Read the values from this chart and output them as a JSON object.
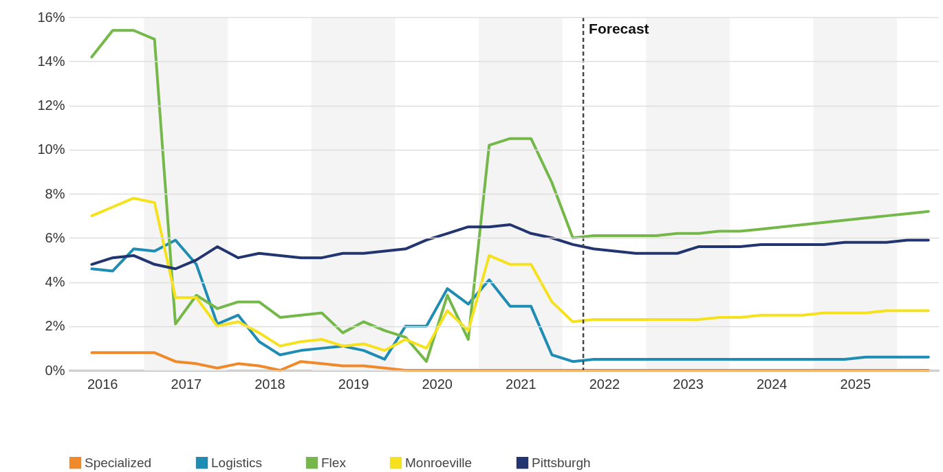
{
  "chart_data": {
    "type": "line",
    "x": [
      2016.375,
      2016.625,
      2016.875,
      2017.125,
      2017.375,
      2017.625,
      2017.875,
      2018.125,
      2018.375,
      2018.625,
      2018.875,
      2019.125,
      2019.375,
      2019.625,
      2019.875,
      2020.125,
      2020.375,
      2020.625,
      2020.875,
      2021.125,
      2021.375,
      2021.625,
      2021.875,
      2022.125,
      2022.375,
      2022.625,
      2022.875,
      2023.125,
      2023.375,
      2023.625,
      2023.875,
      2024.125,
      2024.375,
      2024.625,
      2024.875,
      2025.125,
      2025.375,
      2025.625,
      2025.875,
      2026.125,
      2026.375
    ],
    "series": [
      {
        "name": "Specialized",
        "color": "#f0892a",
        "values": [
          0.8,
          0.8,
          0.8,
          0.8,
          0.4,
          0.3,
          0.1,
          0.3,
          0.2,
          0.0,
          0.4,
          0.3,
          0.2,
          0.2,
          0.1,
          0.0,
          0,
          0,
          0,
          0,
          0,
          0,
          0,
          0,
          0,
          0,
          0,
          0,
          0,
          0,
          0,
          0,
          0,
          0,
          0,
          0,
          0,
          0,
          0,
          0,
          0
        ]
      },
      {
        "name": "Logistics",
        "color": "#1f8db3",
        "values": [
          4.6,
          4.5,
          5.5,
          5.4,
          5.9,
          4.8,
          2.1,
          2.5,
          1.3,
          0.7,
          0.9,
          1.0,
          1.1,
          0.9,
          0.5,
          2.0,
          2.0,
          3.7,
          3.0,
          4.1,
          2.9,
          2.9,
          0.7,
          0.4,
          0.5,
          0.5,
          0.5,
          0.5,
          0.5,
          0.5,
          0.5,
          0.5,
          0.5,
          0.5,
          0.5,
          0.5,
          0.5,
          0.6,
          0.6,
          0.6,
          0.6
        ]
      },
      {
        "name": "Flex",
        "color": "#74b84a",
        "values": [
          14.2,
          15.4,
          15.4,
          15.0,
          2.1,
          3.4,
          2.8,
          3.1,
          3.1,
          2.4,
          2.5,
          2.6,
          1.7,
          2.2,
          1.8,
          1.5,
          0.4,
          3.4,
          1.4,
          10.2,
          10.5,
          10.5,
          8.5,
          6.0,
          6.1,
          6.1,
          6.1,
          6.1,
          6.2,
          6.2,
          6.3,
          6.3,
          6.4,
          6.5,
          6.6,
          6.7,
          6.8,
          6.9,
          7.0,
          7.1,
          7.2
        ]
      },
      {
        "name": "Monroeville",
        "color": "#f5e11e",
        "values": [
          7.0,
          7.4,
          7.8,
          7.6,
          3.3,
          3.3,
          2.0,
          2.2,
          1.7,
          1.1,
          1.3,
          1.4,
          1.1,
          1.2,
          0.9,
          1.4,
          1.0,
          2.7,
          1.8,
          5.2,
          4.8,
          4.8,
          3.1,
          2.2,
          2.3,
          2.3,
          2.3,
          2.3,
          2.3,
          2.3,
          2.4,
          2.4,
          2.5,
          2.5,
          2.5,
          2.6,
          2.6,
          2.6,
          2.7,
          2.7,
          2.7
        ]
      },
      {
        "name": "Pittsburgh",
        "color": "#233570",
        "values": [
          4.8,
          5.1,
          5.2,
          4.8,
          4.6,
          5.0,
          5.6,
          5.1,
          5.3,
          5.2,
          5.1,
          5.1,
          5.3,
          5.3,
          5.4,
          5.5,
          5.9,
          6.2,
          6.5,
          6.5,
          6.6,
          6.2,
          6.0,
          5.7,
          5.5,
          5.4,
          5.3,
          5.3,
          5.3,
          5.6,
          5.6,
          5.6,
          5.7,
          5.7,
          5.7,
          5.7,
          5.8,
          5.8,
          5.8,
          5.9,
          5.9
        ]
      }
    ],
    "xlim": [
      2016.1,
      2026.5
    ],
    "xticks": [
      {
        "value": 2016.5,
        "label": "2016"
      },
      {
        "value": 2017.5,
        "label": "2017"
      },
      {
        "value": 2018.5,
        "label": "2018"
      },
      {
        "value": 2019.5,
        "label": "2019"
      },
      {
        "value": 2020.5,
        "label": "2020"
      },
      {
        "value": 2021.5,
        "label": "2021"
      },
      {
        "value": 2022.5,
        "label": "2022"
      },
      {
        "value": 2023.5,
        "label": "2023"
      },
      {
        "value": 2024.5,
        "label": "2024"
      },
      {
        "value": 2025.5,
        "label": "2025"
      }
    ],
    "ylim": [
      0,
      16
    ],
    "yticks": [
      {
        "value": 0,
        "label": "0%"
      },
      {
        "value": 2,
        "label": "2%"
      },
      {
        "value": 4,
        "label": "4%"
      },
      {
        "value": 6,
        "label": "6%"
      },
      {
        "value": 8,
        "label": "8%"
      },
      {
        "value": 10,
        "label": "10%"
      },
      {
        "value": 12,
        "label": "12%"
      },
      {
        "value": 14,
        "label": "14%"
      },
      {
        "value": 16,
        "label": "16%"
      }
    ],
    "grid": "y",
    "legend": "bottom",
    "ref_lines": [
      {
        "axis": "x",
        "value": 2022.25,
        "label": "Forecast",
        "color": "#444444",
        "line_style": "dashed"
      }
    ],
    "bands": [
      {
        "axis": "x",
        "from": 2017,
        "to": 2018,
        "color": "#f4f4f4"
      },
      {
        "axis": "x",
        "from": 2019,
        "to": 2020,
        "color": "#f4f4f4"
      },
      {
        "axis": "x",
        "from": 2021,
        "to": 2022,
        "color": "#f4f4f4"
      },
      {
        "axis": "x",
        "from": 2023,
        "to": 2024,
        "color": "#f4f4f4"
      },
      {
        "axis": "x",
        "from": 2025,
        "to": 2026,
        "color": "#f4f4f4"
      }
    ]
  }
}
